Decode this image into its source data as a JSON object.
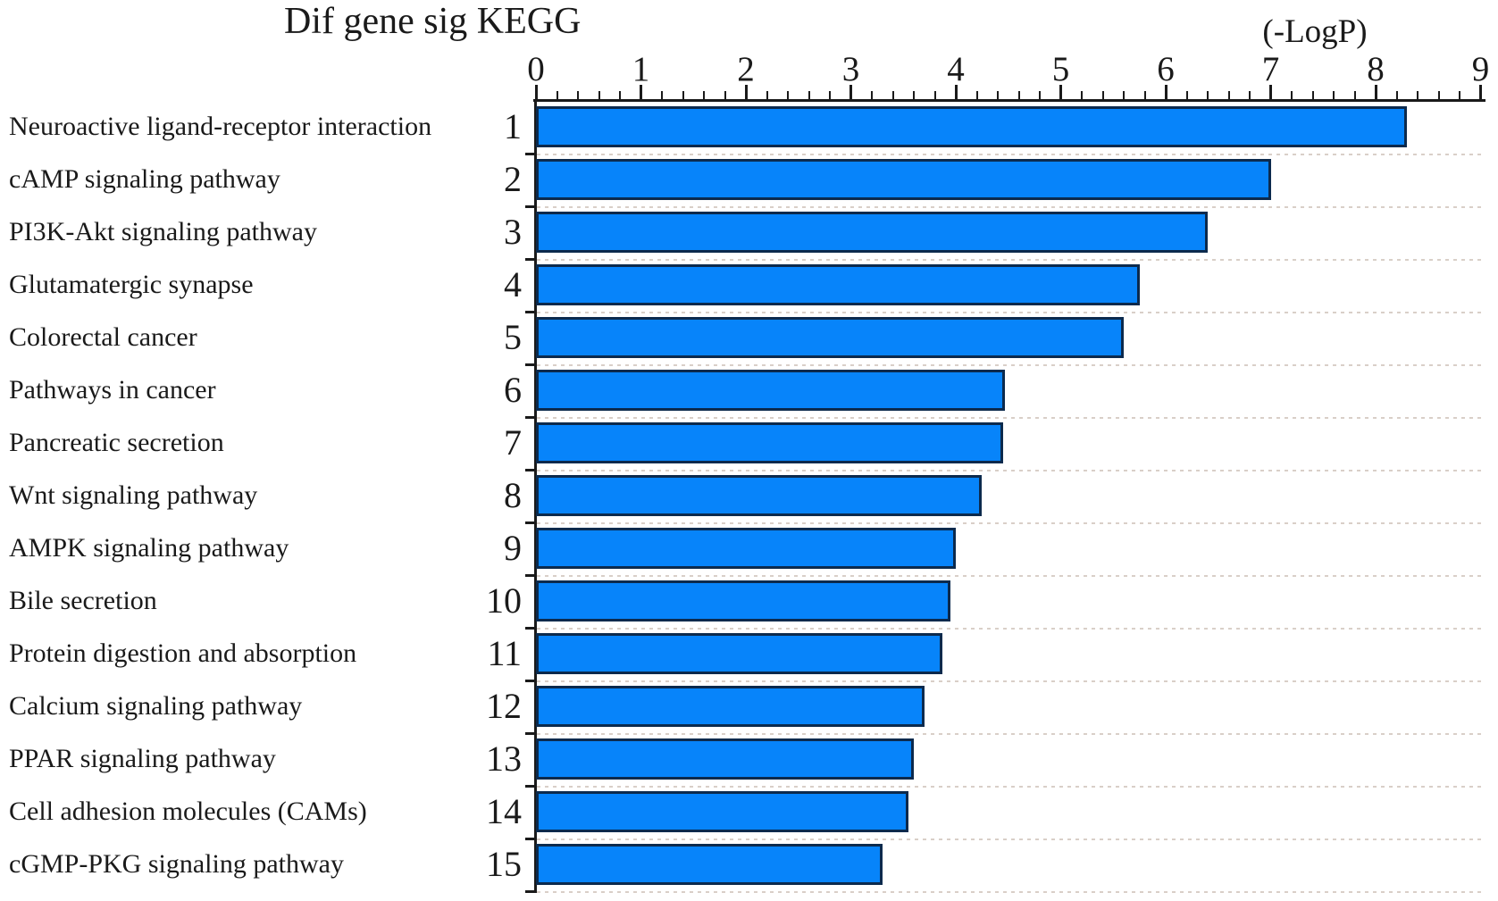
{
  "chart_data": {
    "type": "bar",
    "orientation": "horizontal",
    "title": "Dif gene sig KEGG",
    "xlabel": "(-LogP)",
    "ylabel": "",
    "xlim": [
      0,
      9
    ],
    "x_tick_labels": [
      "0",
      "1",
      "2",
      "3",
      "4",
      "5",
      "6",
      "7",
      "8",
      "9"
    ],
    "minor_tick_step": 0.2,
    "grid": "dotted horizontal separators between rows",
    "legend": "none",
    "axis_position": "top",
    "categories": [
      "Neuroactive ligand-receptor interaction",
      "cAMP signaling pathway",
      "PI3K-Akt signaling pathway",
      "Glutamatergic synapse",
      "Colorectal cancer",
      "Pathways in cancer",
      "Pancreatic secretion",
      "Wnt signaling pathway",
      "AMPK signaling pathway",
      "Bile secretion",
      "Protein digestion and absorption",
      "Calcium signaling pathway",
      "PPAR signaling pathway",
      "Cell adhesion molecules (CAMs)",
      "cGMP-PKG signaling pathway"
    ],
    "ranks": [
      "1",
      "2",
      "3",
      "4",
      "5",
      "6",
      "7",
      "8",
      "9",
      "10",
      "11",
      "12",
      "13",
      "14",
      "15"
    ],
    "values": [
      8.3,
      7.0,
      6.4,
      5.75,
      5.6,
      4.47,
      4.45,
      4.25,
      4.0,
      3.95,
      3.87,
      3.7,
      3.6,
      3.55,
      3.3
    ],
    "colors": {
      "bar_fill": "#0784fa",
      "bar_border": "#0c2a4d",
      "axis": "#1a1a1a",
      "grid_dots": "#d9cfc8",
      "text": "#1a1a1a",
      "background": "#ffffff"
    }
  }
}
